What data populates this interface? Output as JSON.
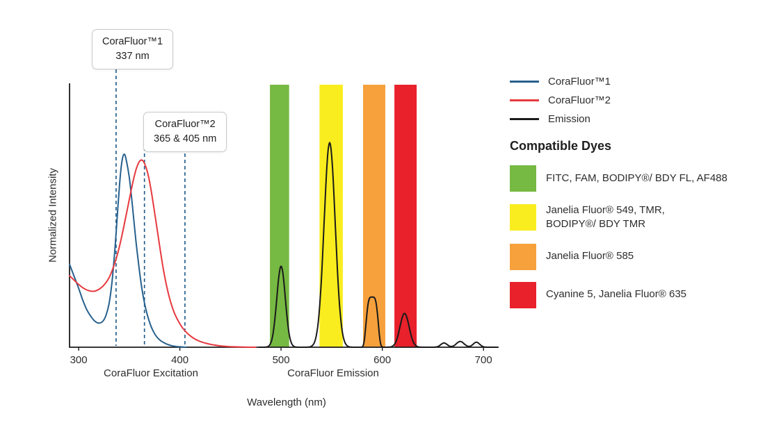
{
  "figure": {
    "ylabel": "Normalized Intensity",
    "xlabel": "Wavelength (nm)",
    "section_labels": [
      "CoraFluor Excitation",
      "CoraFluor Emission"
    ]
  },
  "callouts": [
    {
      "title": "CoraFluor™1",
      "value": "337 nm"
    },
    {
      "title": "CoraFluor™2",
      "value": "365 & 405 nm"
    }
  ],
  "legend": {
    "items": [
      {
        "label": "CoraFluor™1",
        "color": "#26608d"
      },
      {
        "label": "CoraFluor™2",
        "color": "#e6393e"
      },
      {
        "label": "Emission",
        "color": "#1a1a1a"
      }
    ]
  },
  "compatible_dyes": {
    "heading": "Compatible Dyes",
    "items": [
      {
        "color": "#76b943",
        "lines": [
          "FITC, FAM, BODIPY®/ BDY FL, AF488"
        ]
      },
      {
        "color": "#f9ed1f",
        "lines": [
          "Janelia Fluor® 549, TMR,",
          "BODIPY®/ BDY TMR"
        ]
      },
      {
        "color": "#f6a13c",
        "lines": [
          "Janelia Fluor® 585"
        ]
      },
      {
        "color": "#e8212b",
        "lines": [
          "Cyanine 5, Janelia Fluor® 635"
        ]
      }
    ]
  },
  "chart_data": {
    "type": "line",
    "title": "",
    "xlabel": "Wavelength (nm)",
    "ylabel": "Normalized Intensity",
    "xlim": [
      291,
      715
    ],
    "ylim": [
      0,
      1.37
    ],
    "x_ticks": [
      300,
      400,
      500,
      600,
      700
    ],
    "grid": false,
    "legend_position": "right",
    "excitation_laser_lines_nm": {
      "CoraFluor1": [
        337
      ],
      "CoraFluor2": [
        365,
        405
      ]
    },
    "series": [
      {
        "name": "CoraFluor™1 excitation",
        "color": "#26608d",
        "points": [
          [
            291,
            0.43
          ],
          [
            296,
            0.36
          ],
          [
            300,
            0.305
          ],
          [
            304,
            0.245
          ],
          [
            308,
            0.195
          ],
          [
            312,
            0.16
          ],
          [
            316,
            0.135
          ],
          [
            320,
            0.125
          ],
          [
            324,
            0.135
          ],
          [
            327,
            0.165
          ],
          [
            330,
            0.225
          ],
          [
            333,
            0.34
          ],
          [
            336,
            0.52
          ],
          [
            339,
            0.74
          ],
          [
            341,
            0.88
          ],
          [
            343,
            0.97
          ],
          [
            345,
            1.0
          ],
          [
            347,
            0.97
          ],
          [
            350,
            0.88
          ],
          [
            353,
            0.74
          ],
          [
            356,
            0.58
          ],
          [
            359,
            0.44
          ],
          [
            362,
            0.32
          ],
          [
            365,
            0.23
          ],
          [
            368,
            0.165
          ],
          [
            371,
            0.115
          ],
          [
            374,
            0.08
          ],
          [
            377,
            0.055
          ],
          [
            380,
            0.038
          ],
          [
            384,
            0.024
          ],
          [
            388,
            0.014
          ],
          [
            392,
            0.008
          ],
          [
            396,
            0.004
          ],
          [
            400,
            0.002
          ],
          [
            406,
            0.0
          ]
        ]
      },
      {
        "name": "CoraFluor™2 excitation",
        "color": "#e6393e",
        "points": [
          [
            291,
            0.37
          ],
          [
            296,
            0.345
          ],
          [
            300,
            0.325
          ],
          [
            305,
            0.305
          ],
          [
            310,
            0.293
          ],
          [
            315,
            0.29
          ],
          [
            320,
            0.3
          ],
          [
            325,
            0.322
          ],
          [
            330,
            0.36
          ],
          [
            335,
            0.425
          ],
          [
            340,
            0.515
          ],
          [
            345,
            0.635
          ],
          [
            350,
            0.765
          ],
          [
            354,
            0.865
          ],
          [
            357,
            0.925
          ],
          [
            360,
            0.962
          ],
          [
            363,
            0.968
          ],
          [
            366,
            0.94
          ],
          [
            369,
            0.885
          ],
          [
            372,
            0.8
          ],
          [
            375,
            0.7
          ],
          [
            378,
            0.595
          ],
          [
            381,
            0.49
          ],
          [
            384,
            0.395
          ],
          [
            387,
            0.315
          ],
          [
            390,
            0.25
          ],
          [
            394,
            0.185
          ],
          [
            398,
            0.14
          ],
          [
            402,
            0.105
          ],
          [
            406,
            0.08
          ],
          [
            410,
            0.06
          ],
          [
            415,
            0.042
          ],
          [
            420,
            0.03
          ],
          [
            426,
            0.02
          ],
          [
            432,
            0.013
          ],
          [
            440,
            0.007
          ],
          [
            450,
            0.003
          ],
          [
            462,
            0.001
          ],
          [
            475,
            0.0
          ]
        ]
      },
      {
        "name": "Emission",
        "color": "#1a1a1a",
        "range": [
          478,
          714
        ],
        "peaks": [
          {
            "center": 500,
            "height": 0.42,
            "sigma": 4.2,
            "shape": 2
          },
          {
            "center": 548,
            "height": 1.06,
            "sigma": 5.5,
            "shape": 2
          },
          {
            "center": 590,
            "height": 0.26,
            "sigma": 5.5,
            "shape": 4
          },
          {
            "center": 622,
            "height": 0.175,
            "sigma": 4.5,
            "shape": 2
          },
          {
            "center": 661,
            "height": 0.022,
            "sigma": 3.2,
            "shape": 2
          },
          {
            "center": 677,
            "height": 0.03,
            "sigma": 3.8,
            "shape": 2
          },
          {
            "center": 693,
            "height": 0.026,
            "sigma": 3.2,
            "shape": 2
          }
        ]
      }
    ],
    "filter_bands": [
      {
        "dyes": "FITC, FAM, BODIPY®/ BDY FL, AF488",
        "from_nm": 489,
        "to_nm": 508,
        "color": "#76b943"
      },
      {
        "dyes": "Janelia Fluor® 549, TMR, BODIPY®/ BDY TMR",
        "from_nm": 538,
        "to_nm": 561,
        "color": "#f9ed1f"
      },
      {
        "dyes": "Janelia Fluor® 585",
        "from_nm": 581,
        "to_nm": 603,
        "color": "#f6a13c"
      },
      {
        "dyes": "Cyanine 5, Janelia Fluor® 635",
        "from_nm": 612,
        "to_nm": 634,
        "color": "#e8212b"
      }
    ]
  }
}
